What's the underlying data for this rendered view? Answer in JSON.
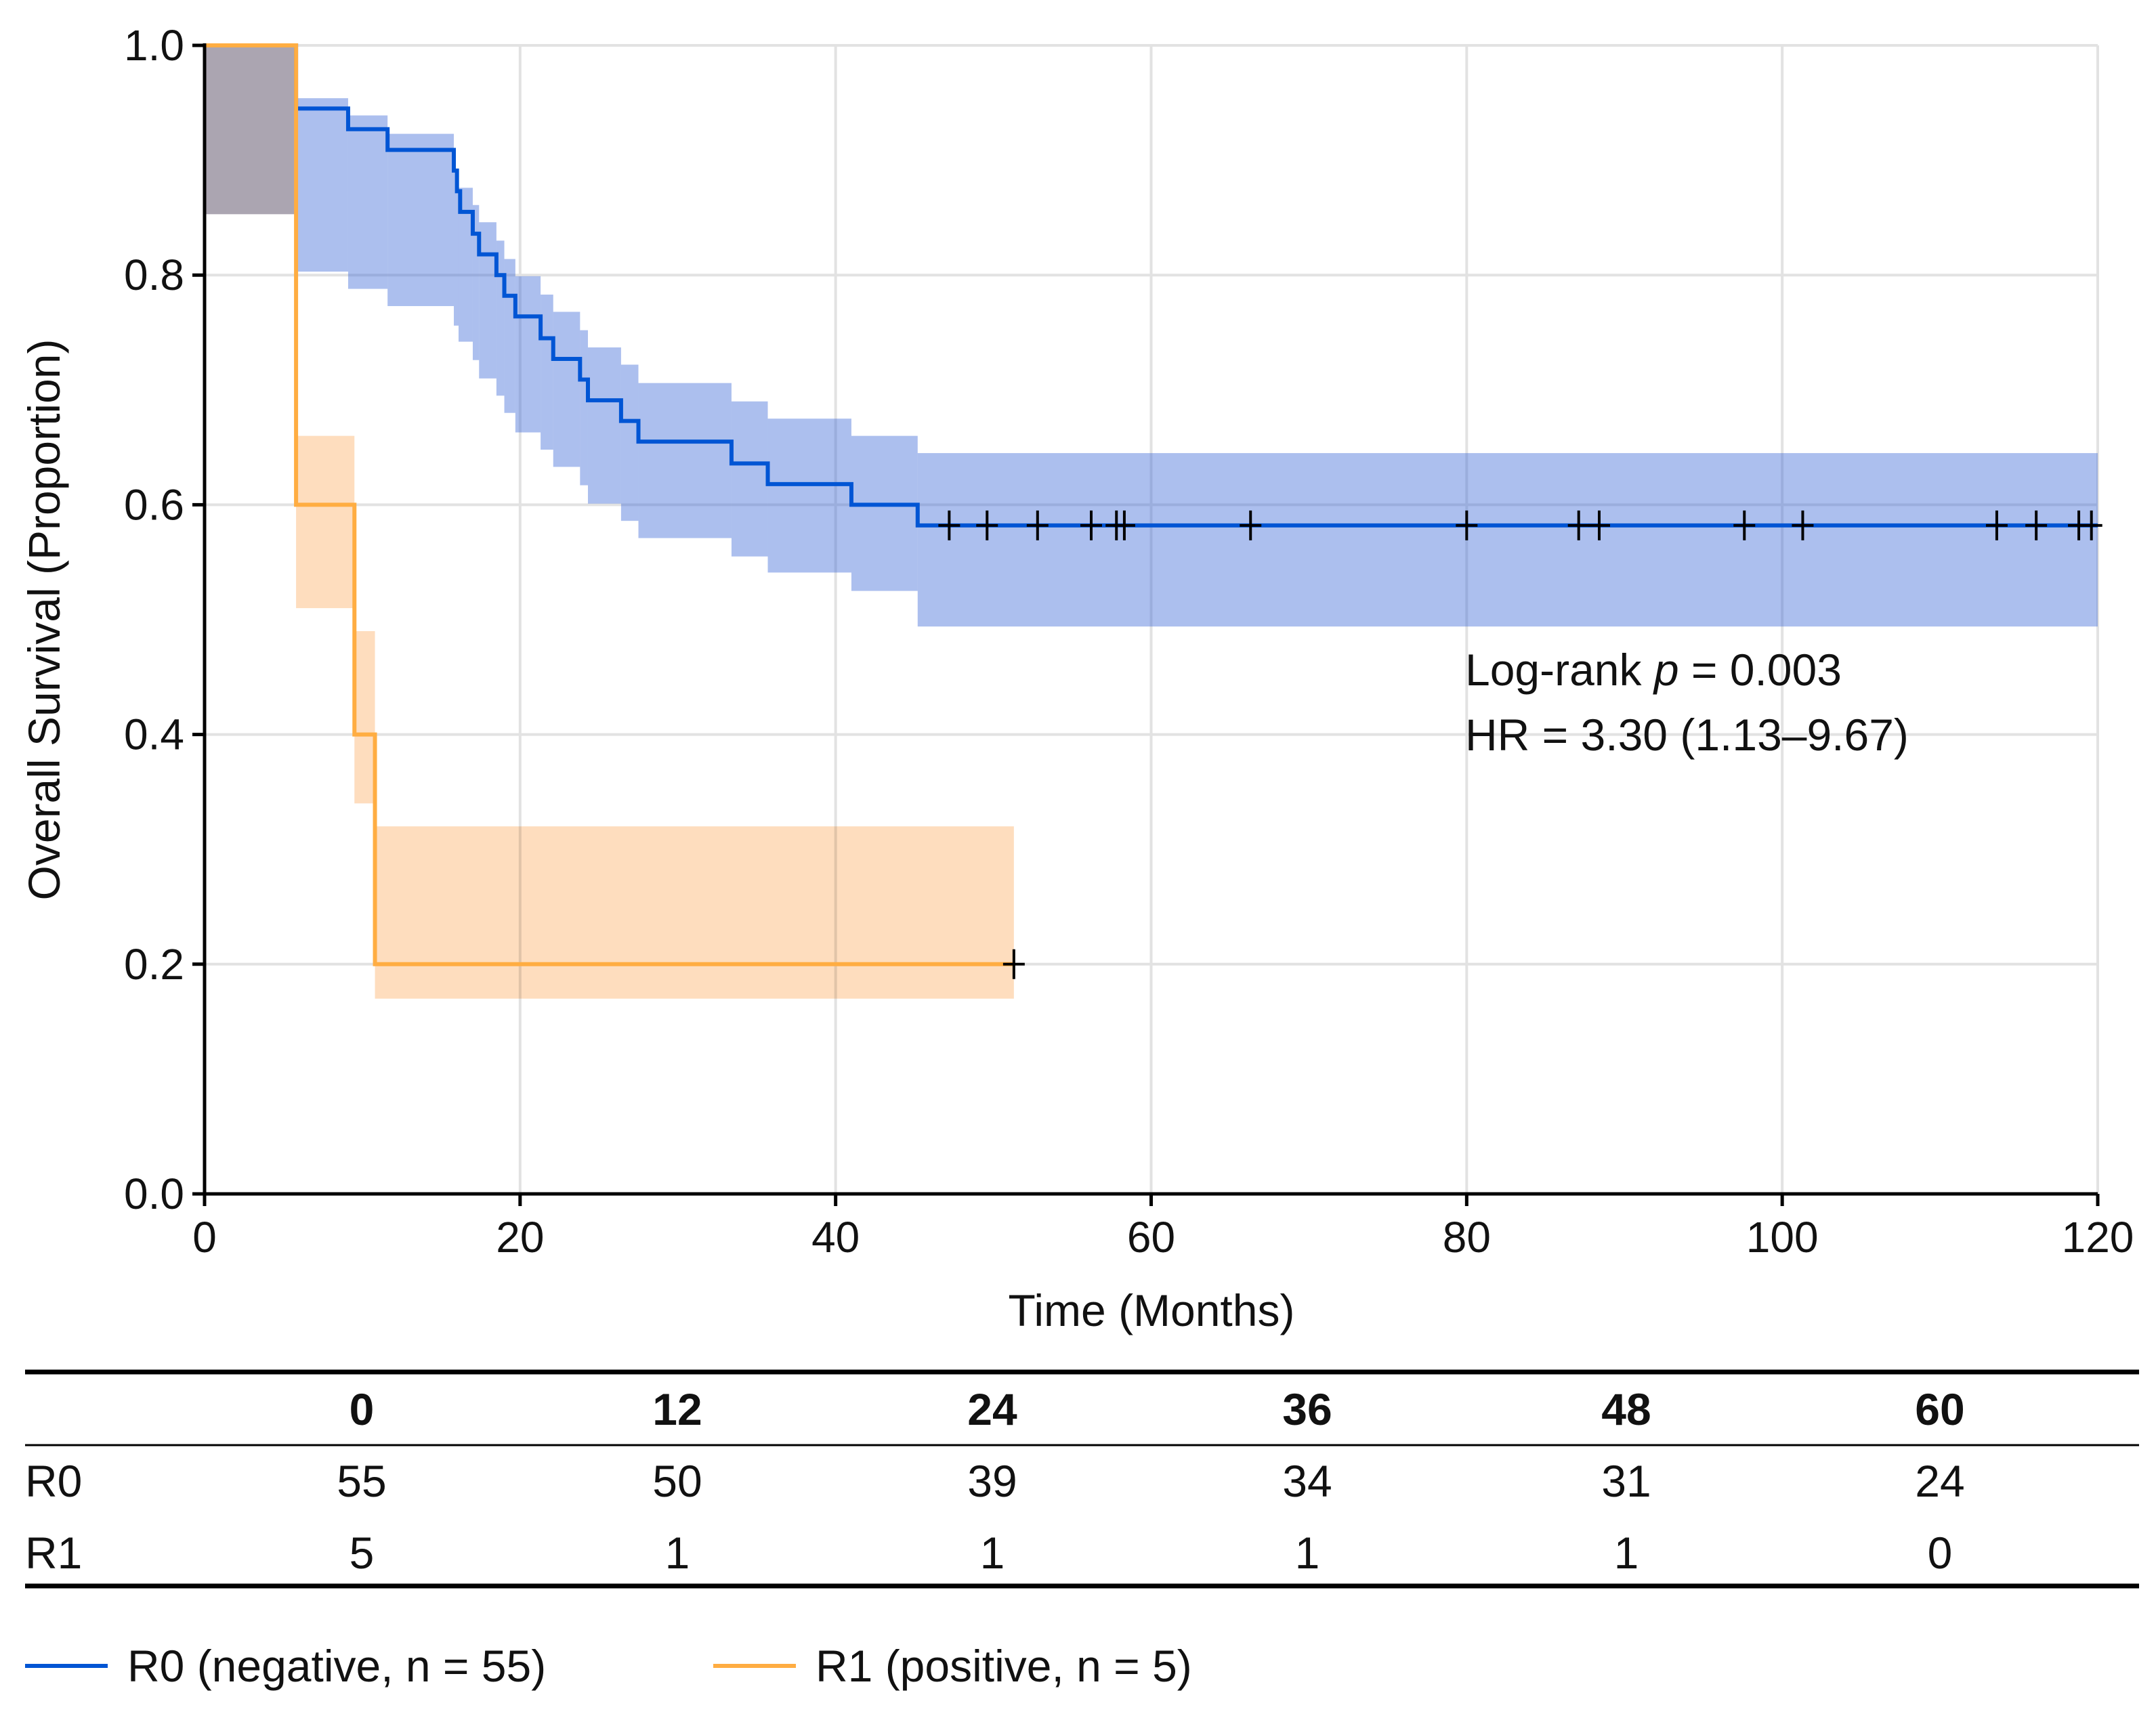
{
  "chart_data": {
    "type": "line",
    "subtype": "kaplan-meier",
    "xlabel": "Time (Months)",
    "ylabel": "Overall Survival (Proportion)",
    "xlim": [
      0,
      120
    ],
    "ylim": [
      0,
      1.0
    ],
    "xticks": [
      0,
      20,
      40,
      60,
      80,
      100,
      120
    ],
    "yticks": [
      "0.0",
      "0.2",
      "0.4",
      "0.6",
      "0.8",
      "1.0"
    ],
    "grid": true,
    "annotation": {
      "line1_prefix": "Log-rank ",
      "line1_italic": "p",
      "line1_suffix": " = 0.003",
      "line2": "HR = 3.30 (1.13–9.67)"
    },
    "series": [
      {
        "name": "R0 (negative, n = 55)",
        "color": "#0055d4",
        "band_color": "#3a66d6",
        "end_time": 120,
        "steps": [
          [
            0,
            1.0
          ],
          [
            5.8,
            0.945
          ],
          [
            9.1,
            0.927
          ],
          [
            11.6,
            0.909
          ],
          [
            15.8,
            0.891
          ],
          [
            16.0,
            0.873
          ],
          [
            16.2,
            0.855
          ],
          [
            17.0,
            0.836
          ],
          [
            17.4,
            0.818
          ],
          [
            18.5,
            0.8
          ],
          [
            19.0,
            0.782
          ],
          [
            19.7,
            0.764
          ],
          [
            21.3,
            0.745
          ],
          [
            22.1,
            0.727
          ],
          [
            23.8,
            0.709
          ],
          [
            24.3,
            0.691
          ],
          [
            26.4,
            0.673
          ],
          [
            27.5,
            0.655
          ],
          [
            33.4,
            0.636
          ],
          [
            35.7,
            0.618
          ],
          [
            41.0,
            0.6
          ],
          [
            45.2,
            0.582
          ]
        ],
        "ci": [
          [
            0,
            0.853,
            1.0
          ],
          [
            5.8,
            0.803,
            0.954
          ],
          [
            9.1,
            0.788,
            0.939
          ],
          [
            11.6,
            0.773,
            0.923
          ],
          [
            15.8,
            0.756,
            0.892
          ],
          [
            16.1,
            0.742,
            0.876
          ],
          [
            17.0,
            0.726,
            0.861
          ],
          [
            17.4,
            0.71,
            0.846
          ],
          [
            18.5,
            0.695,
            0.83
          ],
          [
            19.0,
            0.68,
            0.814
          ],
          [
            19.7,
            0.663,
            0.799
          ],
          [
            21.3,
            0.648,
            0.783
          ],
          [
            22.1,
            0.633,
            0.768
          ],
          [
            23.8,
            0.617,
            0.752
          ],
          [
            24.3,
            0.601,
            0.737
          ],
          [
            26.4,
            0.586,
            0.722
          ],
          [
            27.5,
            0.571,
            0.706
          ],
          [
            33.4,
            0.555,
            0.69
          ],
          [
            35.7,
            0.541,
            0.675
          ],
          [
            41.0,
            0.525,
            0.66
          ],
          [
            45.2,
            0.494,
            0.645
          ]
        ],
        "censored": [
          47.2,
          49.6,
          52.8,
          56.2,
          57.8,
          58.3,
          66.3,
          80.0,
          87.1,
          88.4,
          97.6,
          101.3,
          113.6,
          116.1,
          118.8,
          119.6
        ]
      },
      {
        "name": "R1 (positive, n = 5)",
        "color": "#ffad42",
        "band_color": "#fca555",
        "end_time": 51.3,
        "steps": [
          [
            0,
            1.0
          ],
          [
            5.8,
            0.6
          ],
          [
            9.5,
            0.4
          ],
          [
            10.8,
            0.2
          ]
        ],
        "ci": [
          [
            0,
            0.853,
            1.0
          ],
          [
            5.8,
            0.51,
            0.66
          ],
          [
            9.5,
            0.34,
            0.49
          ],
          [
            10.8,
            0.17,
            0.32
          ]
        ],
        "censored": [
          51.3
        ]
      }
    ],
    "risk_table": {
      "times": [
        "0",
        "12",
        "24",
        "36",
        "48",
        "60"
      ],
      "rows": [
        {
          "label": "R0",
          "values": [
            "55",
            "50",
            "39",
            "34",
            "31",
            "24"
          ]
        },
        {
          "label": "R1",
          "values": [
            "5",
            "1",
            "1",
            "1",
            "1",
            "0"
          ]
        }
      ]
    },
    "legend": {
      "placement": "bottom-left"
    }
  }
}
